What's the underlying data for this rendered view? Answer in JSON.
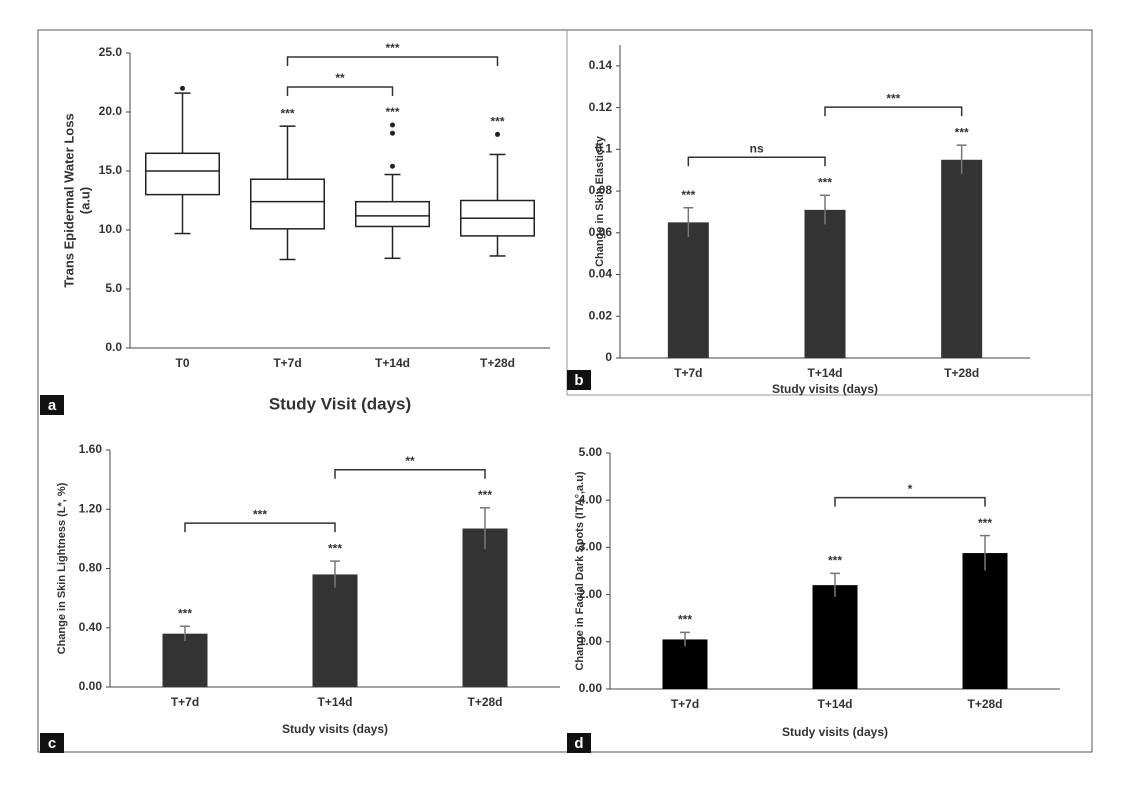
{
  "chart_data": [
    {
      "type": "box",
      "panel": "a",
      "ylabel": [
        "Trans Epidermal Water Loss",
        "(a.u)"
      ],
      "xlabel": "Study Visit (days)",
      "categories": [
        "T0",
        "T+7d",
        "T+14d",
        "T+28d"
      ],
      "min": [
        9.7,
        7.5,
        7.6,
        7.8
      ],
      "q1": [
        13.0,
        10.1,
        10.3,
        9.5
      ],
      "median": [
        15.0,
        12.4,
        11.2,
        11.0
      ],
      "q3": [
        16.5,
        14.3,
        12.4,
        12.5
      ],
      "max": [
        21.6,
        18.8,
        14.7,
        16.4
      ],
      "outliers": [
        [
          22.0
        ],
        [],
        [
          18.9,
          18.2,
          15.4
        ],
        [
          18.1
        ]
      ],
      "value_annotations": [
        null,
        "***",
        "***",
        "***"
      ],
      "brackets": [
        {
          "from": "T+7d",
          "to": "T+14d",
          "label": "**"
        },
        {
          "from": "T+7d",
          "to": "T+28d",
          "label": "***"
        }
      ],
      "color": "#222222",
      "ylim": [
        0,
        25
      ],
      "yticks": [
        {
          "value": 0,
          "label": "0.0"
        },
        {
          "value": 5,
          "label": "5.0"
        },
        {
          "value": 10,
          "label": "10.0"
        },
        {
          "value": 15,
          "label": "15.0"
        },
        {
          "value": 20,
          "label": "20.0"
        },
        {
          "value": 25,
          "label": "25.0"
        }
      ]
    },
    {
      "type": "bar",
      "panel": "b",
      "ylabel": "Change in Skin Elasticity",
      "xlabel": "Study visits (days)",
      "categories": [
        "T+7d",
        "T+14d",
        "T+28d"
      ],
      "values": [
        0.065,
        0.071,
        0.095
      ],
      "errors": [
        0.007,
        0.007,
        0.007
      ],
      "value_annotations": [
        "***",
        "***",
        "***"
      ],
      "brackets": [
        {
          "from": "T+7d",
          "to": "T+14d",
          "label": "ns"
        },
        {
          "from": "T+14d",
          "to": "T+28d",
          "label": "***"
        }
      ],
      "color": "#333333",
      "ylim": [
        0,
        0.15
      ],
      "yticks": [
        0,
        0.02,
        0.04,
        0.06,
        0.08,
        0.1,
        0.12,
        0.14
      ]
    },
    {
      "type": "bar",
      "panel": "c",
      "ylabel": "Change in Skin Lightness (L*, %)",
      "xlabel": "Study visits (days)",
      "categories": [
        "T+7d",
        "T+14d",
        "T+28d"
      ],
      "values": [
        0.36,
        0.76,
        1.07
      ],
      "errors": [
        0.05,
        0.09,
        0.14
      ],
      "value_annotations": [
        "***",
        "***",
        "***"
      ],
      "brackets": [
        {
          "from": "T+7d",
          "to": "T+14d",
          "label": "***"
        },
        {
          "from": "T+14d",
          "to": "T+28d",
          "label": "**"
        }
      ],
      "color": "#333333",
      "ylim": [
        0,
        1.6
      ],
      "yticks": [
        {
          "value": 0,
          "label": "0.00"
        },
        {
          "value": 0.4,
          "label": "0.40"
        },
        {
          "value": 0.8,
          "label": "0.80"
        },
        {
          "value": 1.2,
          "label": "1.20"
        },
        {
          "value": 1.6,
          "label": "1.60"
        }
      ]
    },
    {
      "type": "bar",
      "panel": "d",
      "ylabel": "Change in Facial Dark Spots (ITA°,a.u)",
      "xlabel": "Study visits (days)",
      "categories": [
        "T+7d",
        "T+14d",
        "T+28d"
      ],
      "values": [
        1.05,
        2.2,
        2.88
      ],
      "errors": [
        0.15,
        0.25,
        0.37
      ],
      "value_annotations": [
        "***",
        "***",
        "***"
      ],
      "brackets": [
        {
          "from": "T+14d",
          "to": "T+28d",
          "label": "*"
        }
      ],
      "color": "#000000",
      "ylim": [
        0,
        5
      ],
      "yticks": [
        {
          "value": 0,
          "label": "0.00"
        },
        {
          "value": 1,
          "label": "1.00"
        },
        {
          "value": 2,
          "label": "2.00"
        },
        {
          "value": 3,
          "label": "3.00"
        },
        {
          "value": 4,
          "label": "4.00"
        },
        {
          "value": 5,
          "label": "5.00"
        }
      ]
    }
  ]
}
